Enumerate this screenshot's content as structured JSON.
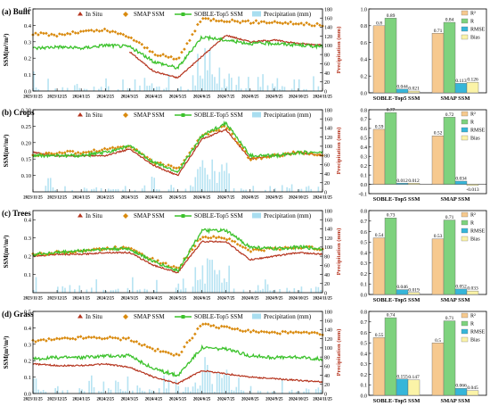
{
  "dates": [
    "2023/11/25",
    "2023/12/25",
    "2024/1/25",
    "2024/2/25",
    "2024/3/25",
    "2024/4/25",
    "2024/5/25",
    "2024/6/25",
    "2024/7/25",
    "2024/8/25",
    "2024/9/25",
    "2024/10/25",
    "2024/11/25"
  ],
  "legend": {
    "insitu": "In Situ",
    "smap": "SMAP SSM",
    "soble": "SOBLE-Top5 SSM",
    "precip": "Precipitation (mm)"
  },
  "ylabel_left": "SSM(m³/m³)",
  "ylabel_right": "Precipitation (mm)",
  "bar_legend": [
    "R²",
    "R",
    "RMSE",
    "Bias"
  ],
  "bar_categories": [
    "SOBLE-Top5 SSM",
    "SMAP SSM"
  ],
  "colors": {
    "insitu": "#b5341e",
    "smap": "#d98a0e",
    "soble": "#3cc22c",
    "precip": "#a9def0",
    "r2": "#f6c98f",
    "r": "#7ed27e",
    "rmse": "#36b6d9",
    "bias": "#fbf3a7"
  },
  "chart_data": [
    {
      "type": "line",
      "title": "(a) Built",
      "ylim": [
        0.0,
        0.5
      ],
      "y2lim": [
        0,
        180
      ],
      "yticks": [
        0.0,
        0.1,
        0.2,
        0.3,
        0.4,
        0.5
      ],
      "y2ticks": [
        0,
        20,
        40,
        60,
        80,
        100,
        120,
        140,
        160,
        180
      ],
      "series": [
        {
          "name": "SMAP SSM",
          "values": [
            0.35,
            0.34,
            0.36,
            0.37,
            0.33,
            0.23,
            0.19,
            0.44,
            0.43,
            0.42,
            0.42,
            0.41,
            0.4
          ]
        },
        {
          "name": "SOBLE-Top5 SSM",
          "values": [
            0.26,
            0.27,
            0.26,
            0.28,
            0.27,
            0.18,
            0.14,
            0.33,
            0.31,
            0.29,
            0.29,
            0.28,
            0.27
          ]
        },
        {
          "name": "In Situ",
          "values": [
            null,
            null,
            null,
            null,
            0.24,
            0.12,
            0.08,
            0.21,
            0.34,
            0.3,
            0.31,
            0.29,
            0.28
          ]
        }
      ],
      "bars": {
        "SOBLE-Top5 SSM": [
          0.8,
          0.89,
          0.044,
          0.021
        ],
        "SMAP SSM": [
          0.71,
          0.84,
          0.113,
          0.126
        ]
      },
      "bar_labels": {
        "SOBLE-Top5 SSM": [
          "0.8",
          "0.89",
          "0.044",
          "0.021"
        ],
        "SMAP SSM": [
          "0.71",
          "0.84",
          "0.113",
          "0.126"
        ]
      },
      "bar_ylim": [
        0,
        1.0
      ],
      "bar_yticks": [
        0.0,
        0.2,
        0.4,
        0.6,
        0.8,
        1.0
      ]
    },
    {
      "type": "line",
      "title": "(b) Crops",
      "ylim": [
        0.05,
        0.3
      ],
      "y2lim": [
        0,
        180
      ],
      "yticks": [
        0.1,
        0.15,
        0.2,
        0.25,
        0.3
      ],
      "y2ticks": [
        0,
        20,
        40,
        60,
        80,
        100,
        120,
        140,
        160,
        180
      ],
      "series": [
        {
          "name": "SMAP SSM",
          "values": [
            0.16,
            0.17,
            0.17,
            0.18,
            0.19,
            0.14,
            0.12,
            0.22,
            0.25,
            0.15,
            0.16,
            0.17,
            0.16
          ]
        },
        {
          "name": "SOBLE-Top5 SSM",
          "values": [
            0.16,
            0.16,
            0.16,
            0.17,
            0.19,
            0.14,
            0.11,
            0.22,
            0.26,
            0.16,
            0.16,
            0.17,
            0.17
          ]
        },
        {
          "name": "In Situ",
          "values": [
            0.17,
            0.16,
            0.16,
            0.16,
            0.18,
            0.13,
            0.1,
            0.21,
            0.24,
            0.15,
            0.16,
            0.17,
            0.16
          ]
        }
      ],
      "bars": {
        "SOBLE-Top5 SSM": [
          0.59,
          0.77,
          0.012,
          0.012
        ],
        "SMAP SSM": [
          0.52,
          0.72,
          0.034,
          -0.013
        ]
      },
      "bar_labels": {
        "SOBLE-Top5 SSM": [
          "0.59",
          "0.77",
          "0.012",
          "0.012"
        ],
        "SMAP SSM": [
          "0.52",
          "0.72",
          "0.034",
          "-0.013"
        ]
      },
      "bar_ylim": [
        -0.1,
        0.8
      ],
      "bar_yticks": [
        -0.1,
        0.0,
        0.1,
        0.2,
        0.3,
        0.4,
        0.5,
        0.6,
        0.7,
        0.8
      ]
    },
    {
      "type": "line",
      "title": "(c) Trees",
      "ylim": [
        0.0,
        0.45
      ],
      "y2lim": [
        0,
        180
      ],
      "yticks": [
        0.1,
        0.2,
        0.3,
        0.4
      ],
      "y2ticks": [
        0,
        20,
        40,
        60,
        80,
        100,
        120,
        140,
        160,
        180
      ],
      "series": [
        {
          "name": "SMAP SSM",
          "values": [
            0.21,
            0.22,
            0.23,
            0.24,
            0.25,
            0.18,
            0.13,
            0.31,
            0.3,
            0.23,
            0.24,
            0.25,
            0.24
          ]
        },
        {
          "name": "SOBLE-Top5 SSM",
          "values": [
            0.21,
            0.22,
            0.23,
            0.24,
            0.24,
            0.17,
            0.12,
            0.34,
            0.34,
            0.25,
            0.24,
            0.25,
            0.24
          ]
        },
        {
          "name": "In Situ",
          "values": [
            0.2,
            0.21,
            0.21,
            0.22,
            0.22,
            0.15,
            0.11,
            0.28,
            0.28,
            0.18,
            0.2,
            0.22,
            0.21
          ]
        }
      ],
      "bars": {
        "SOBLE-Top5 SSM": [
          0.54,
          0.73,
          0.046,
          0.019
        ],
        "SMAP SSM": [
          0.53,
          0.71,
          0.052,
          0.033
        ]
      },
      "bar_labels": {
        "SOBLE-Top5 SSM": [
          "0.54",
          "0.73",
          "0.046",
          "0.019"
        ],
        "SMAP SSM": [
          "0.53",
          "0.71",
          "0.052",
          "0.033"
        ]
      },
      "bar_ylim": [
        0,
        0.8
      ],
      "bar_yticks": [
        0.0,
        0.1,
        0.2,
        0.3,
        0.4,
        0.5,
        0.6,
        0.7,
        0.8
      ]
    },
    {
      "type": "line",
      "title": "(d) Grass",
      "ylim": [
        0.0,
        0.5
      ],
      "y2lim": [
        0,
        180
      ],
      "yticks": [
        0.0,
        0.1,
        0.2,
        0.3,
        0.4,
        0.5
      ],
      "y2ticks": [
        0,
        20,
        40,
        60,
        80,
        100,
        120,
        140,
        160,
        180
      ],
      "series": [
        {
          "name": "SMAP SSM",
          "values": [
            0.32,
            0.33,
            0.34,
            0.34,
            0.33,
            0.27,
            0.23,
            0.42,
            0.4,
            0.38,
            0.37,
            0.37,
            0.36
          ]
        },
        {
          "name": "SOBLE-Top5 SSM",
          "values": [
            0.21,
            0.22,
            0.22,
            0.23,
            0.23,
            0.15,
            0.11,
            0.28,
            0.27,
            0.23,
            0.22,
            0.22,
            0.21
          ]
        },
        {
          "name": "In Situ",
          "values": [
            0.18,
            0.17,
            0.17,
            0.18,
            0.16,
            0.1,
            0.06,
            0.14,
            0.12,
            0.1,
            0.09,
            0.08,
            0.07
          ]
        }
      ],
      "bars": {
        "SOBLE-Top5 SSM": [
          0.55,
          0.74,
          0.155,
          0.147
        ],
        "SMAP SSM": [
          0.5,
          0.71,
          0.066,
          0.045
        ]
      },
      "bar_labels": {
        "SOBLE-Top5 SSM": [
          "0.55",
          "0.74",
          "0.155",
          "0.147"
        ],
        "SMAP SSM": [
          "0.5",
          "0.71",
          "0.066",
          "0.045"
        ]
      },
      "bar_ylim": [
        0,
        0.8
      ],
      "bar_yticks": [
        0.0,
        0.1,
        0.2,
        0.3,
        0.4,
        0.5,
        0.6,
        0.7,
        0.8
      ]
    }
  ]
}
